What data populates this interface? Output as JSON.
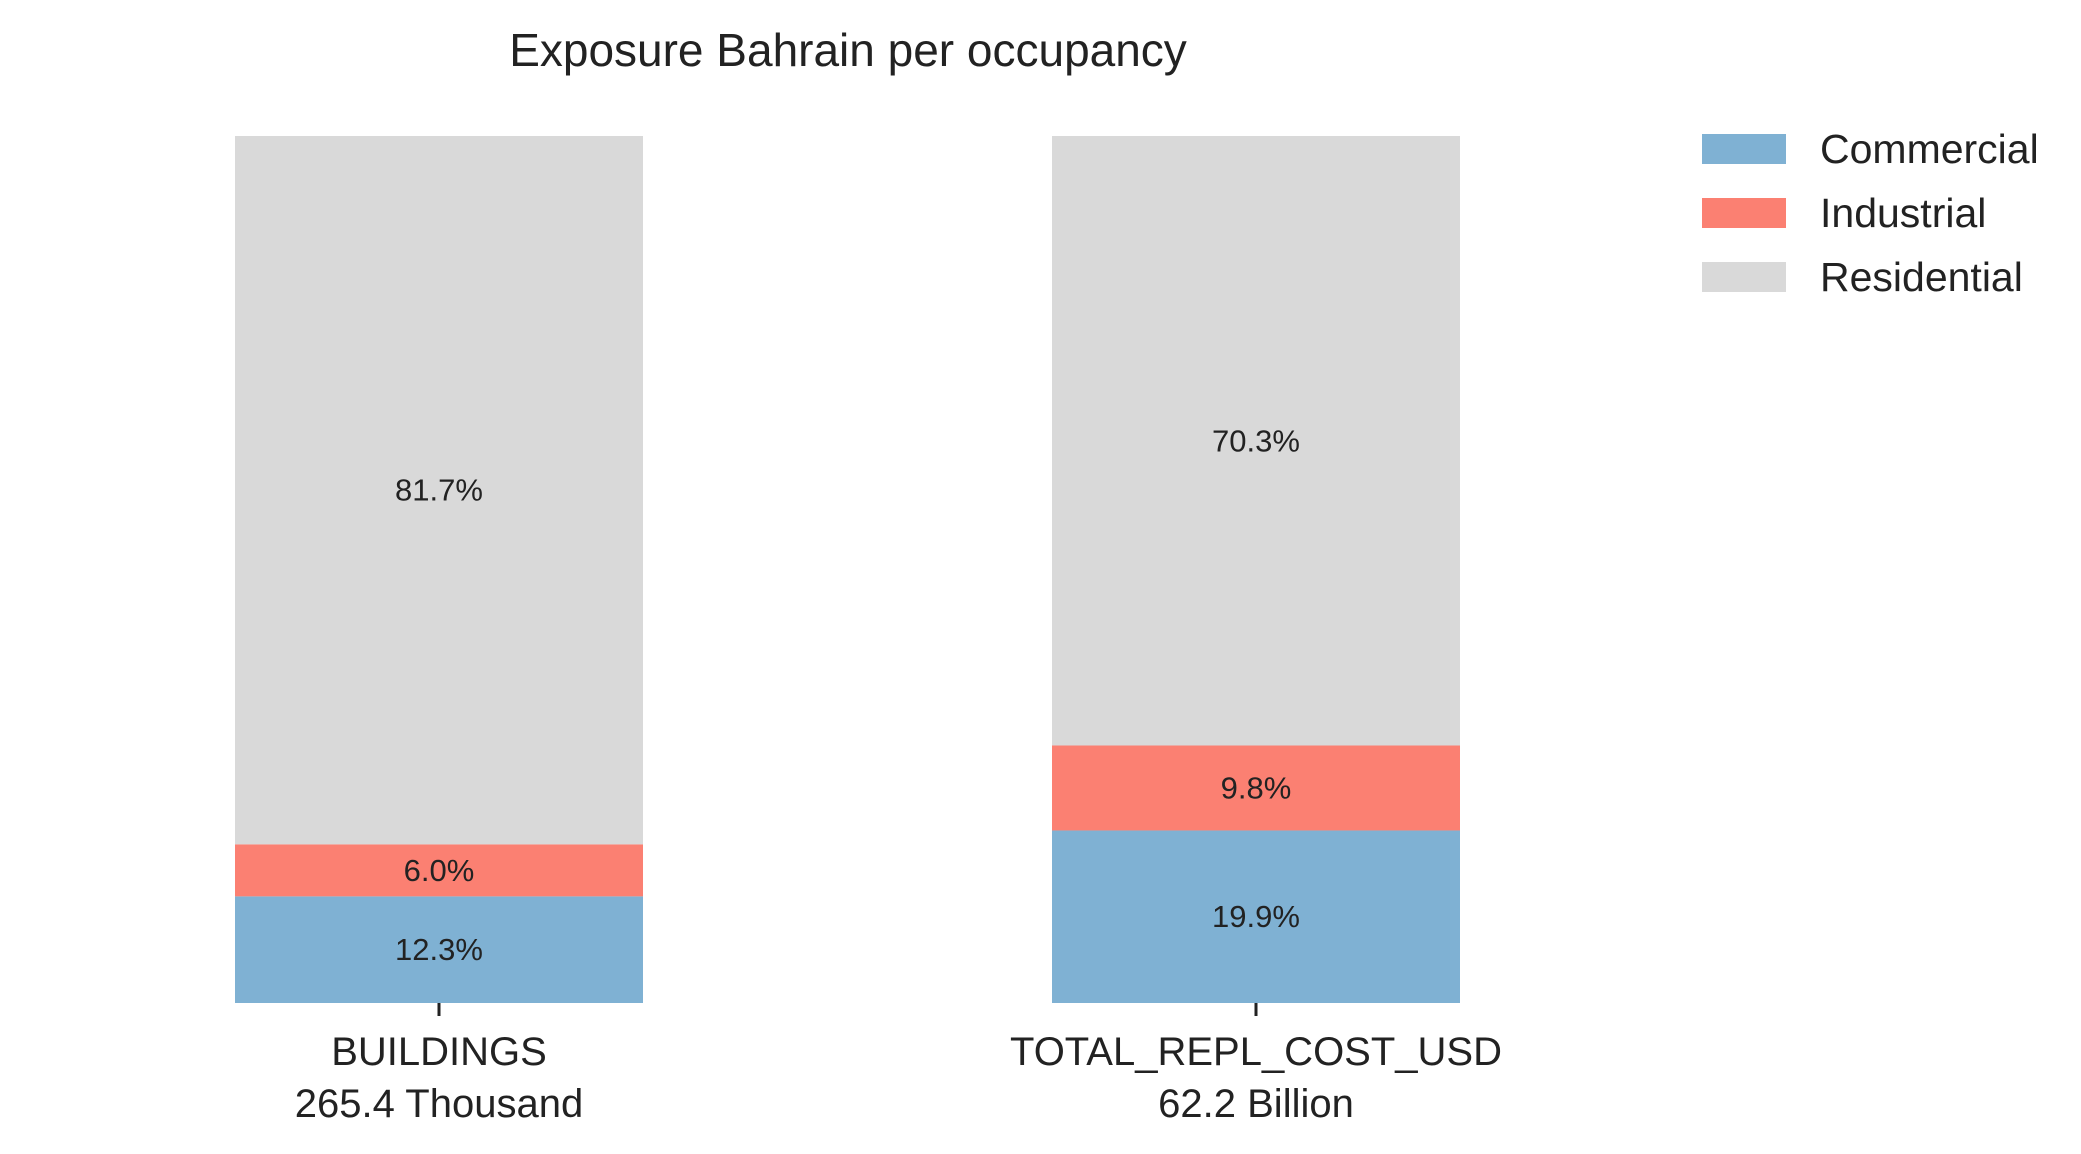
{
  "chart_data": {
    "type": "bar",
    "stacked": true,
    "title": "Exposure Bahrain per occupancy",
    "xlabel": "",
    "ylabel": "",
    "ylim": [
      0,
      100
    ],
    "grid": false,
    "legend_position": "top-right",
    "categories": [
      {
        "name": "BUILDINGS",
        "total_label": "265.4 Thousand"
      },
      {
        "name": "TOTAL_REPL_COST_USD",
        "total_label": "62.2 Billion"
      }
    ],
    "series": [
      {
        "name": "Commercial",
        "color": "#7fb1d3",
        "values": [
          12.3,
          19.9
        ],
        "labels": [
          "12.3%",
          "19.9%"
        ]
      },
      {
        "name": "Industrial",
        "color": "#fb8072",
        "values": [
          6.0,
          9.8
        ],
        "labels": [
          "6.0%",
          "9.8%"
        ]
      },
      {
        "name": "Residential",
        "color": "#d9d9d9",
        "values": [
          81.7,
          70.3
        ],
        "labels": [
          "81.7%",
          "70.3%"
        ]
      }
    ]
  }
}
